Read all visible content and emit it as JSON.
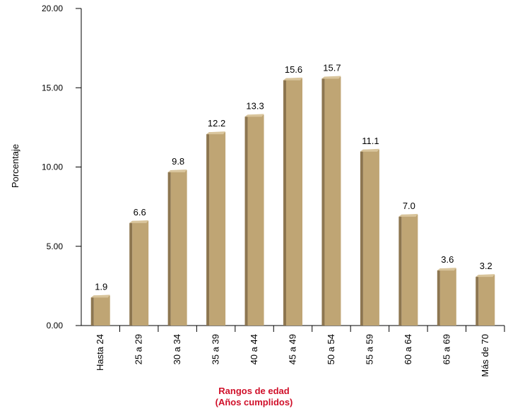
{
  "chart_data": {
    "type": "bar",
    "categories": [
      "Hasta 24",
      "25 a 29",
      "30 a 34",
      "35 a 39",
      "40 a 44",
      "45 a 49",
      "50 a 54",
      "55 a 59",
      "60 a 64",
      "65 a 69",
      "Más de 70"
    ],
    "values": [
      1.9,
      6.6,
      9.8,
      12.2,
      13.3,
      15.6,
      15.7,
      11.1,
      7.0,
      3.6,
      3.2
    ],
    "value_labels": [
      "1.9",
      "6.6",
      "9.8",
      "12.2",
      "13.3",
      "15.6",
      "15.7",
      "11.1",
      "7.0",
      "3.6",
      "3.2"
    ],
    "ylabel": "Porcentaje",
    "xlabel_line1": "Rangos de edad",
    "xlabel_line2": "(Años cumplidos)",
    "ylim": [
      0,
      20
    ],
    "yticks": [
      0,
      5,
      10,
      15,
      20
    ],
    "ytick_labels": [
      "0.00",
      "5.00",
      "10.00",
      "15.00",
      "20.00"
    ],
    "grid": false,
    "colors": {
      "bar_front": "#bfa574",
      "bar_side": "#8d7650",
      "bar_top": "#d9c59c",
      "axis": "#000000",
      "xlabel": "#d0102a"
    }
  }
}
